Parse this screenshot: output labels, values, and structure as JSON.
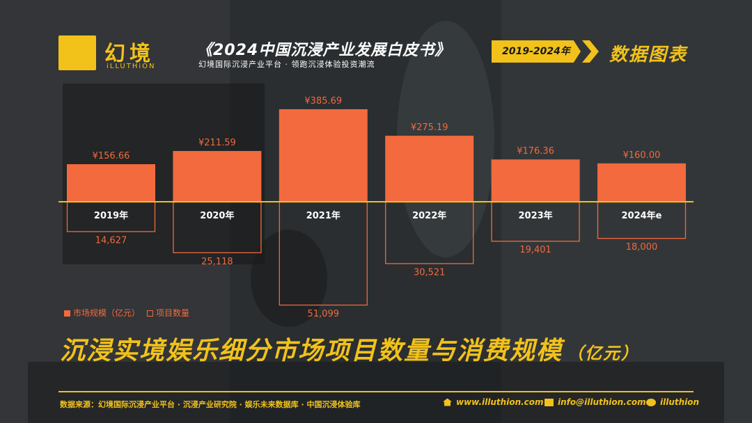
{
  "brand": {
    "name": "幻境",
    "sub": "iLLUTHiON"
  },
  "header": {
    "title": "《2024中国沉浸产业发展白皮书》",
    "subtitle": "幻境国际沉浸产业平台 · 领跑沉浸体验投资潮流",
    "year_range": "2019-2024年",
    "section": "数据图表"
  },
  "chart_data": {
    "type": "bar",
    "categories": [
      "2019年",
      "2020年",
      "2021年",
      "2022年",
      "2023年",
      "2024年e"
    ],
    "series": [
      {
        "name": "市场规模（亿元）",
        "values": [
          156.66,
          211.59,
          385.69,
          275.19,
          176.36,
          160.0
        ],
        "labels": [
          "¥156.66",
          "¥211.59",
          "¥385.69",
          "¥275.19",
          "¥176.36",
          "¥160.00"
        ],
        "style": "filled-up",
        "color": "#f26a3d"
      },
      {
        "name": "项目数量",
        "values": [
          14627,
          25118,
          51099,
          30521,
          19401,
          18000
        ],
        "labels": [
          "14,627",
          "25,118",
          "51,099",
          "30,521",
          "19,401",
          "18,000"
        ],
        "style": "outline-down",
        "color": "#f26a3d"
      }
    ],
    "axis_color": "#f2c21b"
  },
  "legend": {
    "market": "市场规模（亿元）",
    "projects": "项目数量"
  },
  "main_title": {
    "text": "沉浸实境娱乐细分市场项目数量与消费规模",
    "unit": "（亿元）"
  },
  "footer": {
    "source": "数据来源：幻境国际沉浸产业平台 · 沉浸产业研究院 · 娱乐未来数据库 · 中国沉浸体验库",
    "website": "www.illuthion.com",
    "email": "info@illuthion.com",
    "wechat": "illuthion"
  },
  "colors": {
    "accent": "#f2c21b",
    "bar": "#f26a3d"
  }
}
